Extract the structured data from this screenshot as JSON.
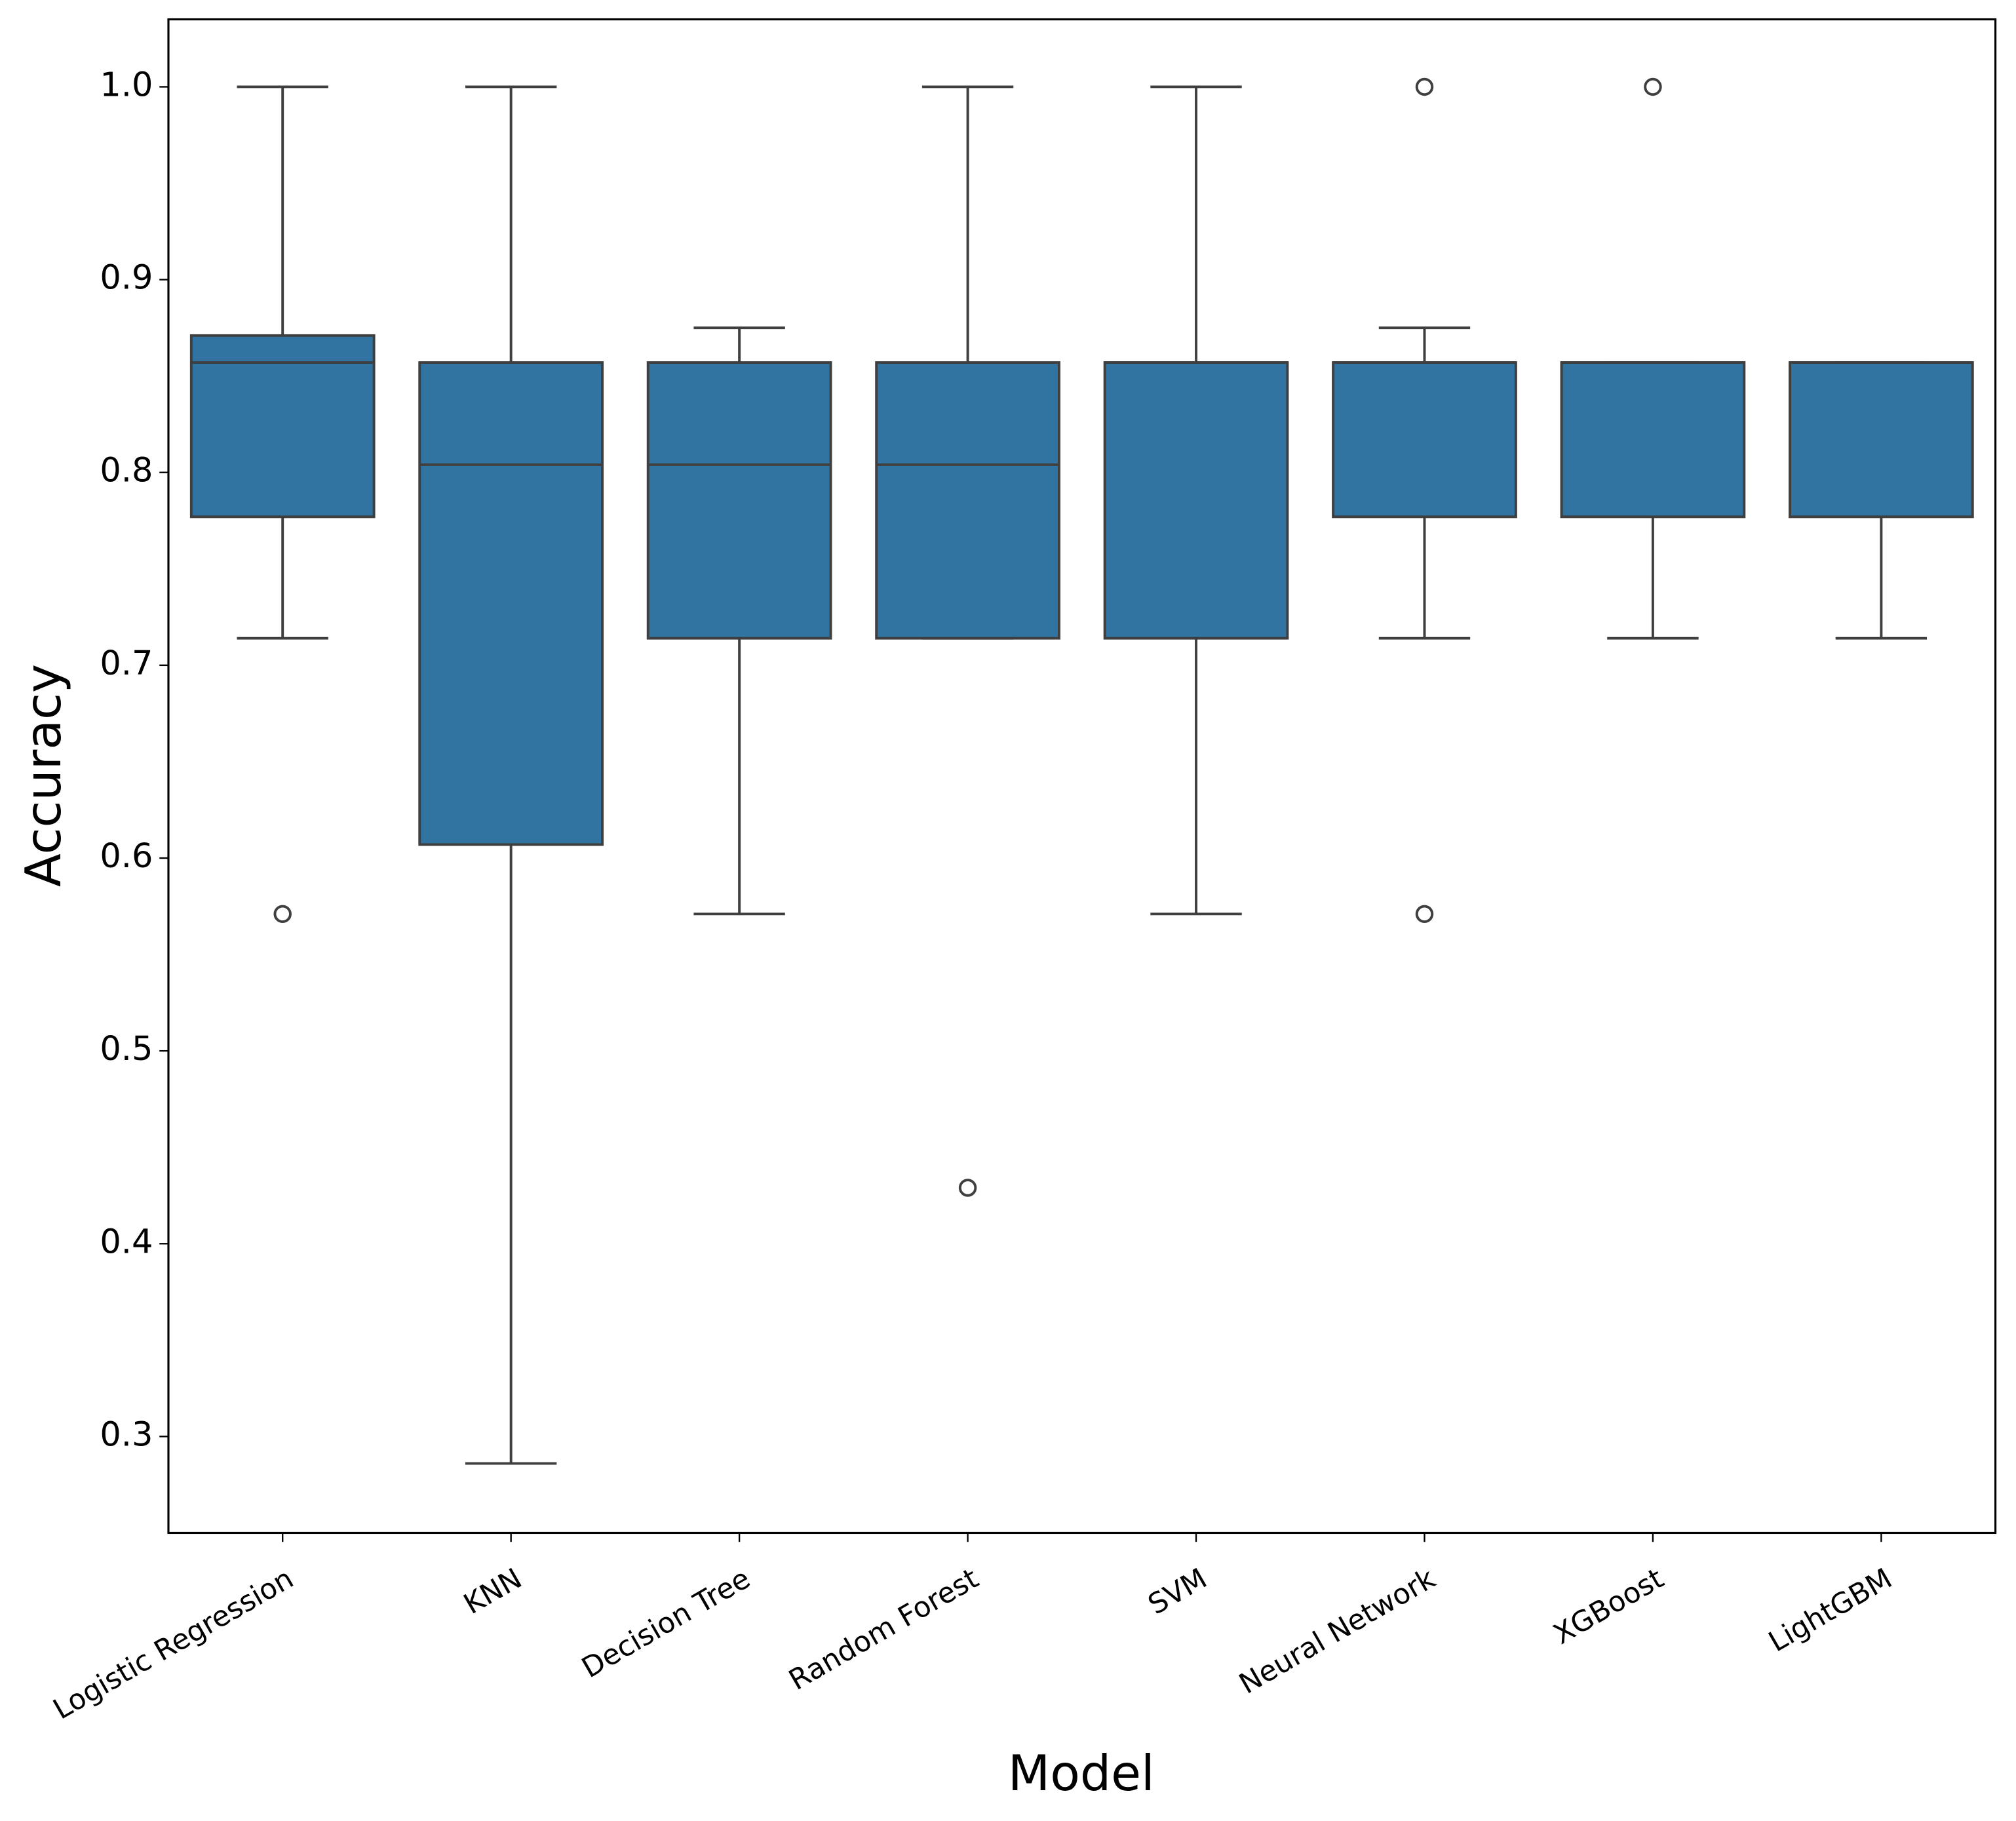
{
  "chart_data": {
    "type": "box",
    "x_label": "Model",
    "y_label": "Accuracy",
    "categories": [
      "Logistic Regression",
      "KNN",
      "Decision Tree",
      "Random Forest",
      "SVM",
      "Neural Network",
      "XGBoost",
      "LightGBM"
    ],
    "color": "#3274a1",
    "boxes": [
      {
        "whislo": 0.714,
        "q1": 0.777,
        "med": 0.857,
        "q3": 0.871,
        "whishi": 1.0,
        "fliers": [
          0.571
        ]
      },
      {
        "whislo": 0.286,
        "q1": 0.607,
        "med": 0.804,
        "q3": 0.857,
        "whishi": 1.0,
        "fliers": []
      },
      {
        "whislo": 0.571,
        "q1": 0.714,
        "med": 0.804,
        "q3": 0.857,
        "whishi": 0.875,
        "fliers": []
      },
      {
        "whislo": 0.714,
        "q1": 0.714,
        "med": 0.804,
        "q3": 0.857,
        "whishi": 1.0,
        "fliers": [
          0.429
        ]
      },
      {
        "whislo": 0.571,
        "q1": 0.714,
        "med": 0.857,
        "q3": 0.857,
        "whishi": 1.0,
        "fliers": []
      },
      {
        "whislo": 0.714,
        "q1": 0.777,
        "med": 0.857,
        "q3": 0.857,
        "whishi": 0.875,
        "fliers": [
          0.571,
          1.0
        ]
      },
      {
        "whislo": 0.714,
        "q1": 0.777,
        "med": 0.857,
        "q3": 0.857,
        "whishi": 0.857,
        "fliers": [
          1.0
        ]
      },
      {
        "whislo": 0.714,
        "q1": 0.777,
        "med": 0.857,
        "q3": 0.857,
        "whishi": 0.857,
        "fliers": []
      }
    ],
    "ylim": [
      0.25,
      1.035
    ],
    "yticks": [
      {
        "value": 0.3,
        "label": "0.3"
      },
      {
        "value": 0.4,
        "label": "0.4"
      },
      {
        "value": 0.5,
        "label": "0.5"
      },
      {
        "value": 0.6,
        "label": "0.6"
      },
      {
        "value": 0.7,
        "label": "0.7"
      },
      {
        "value": 0.8,
        "label": "0.8"
      },
      {
        "value": 0.9,
        "label": "0.9"
      },
      {
        "value": 1.0,
        "label": "1.0"
      }
    ]
  }
}
